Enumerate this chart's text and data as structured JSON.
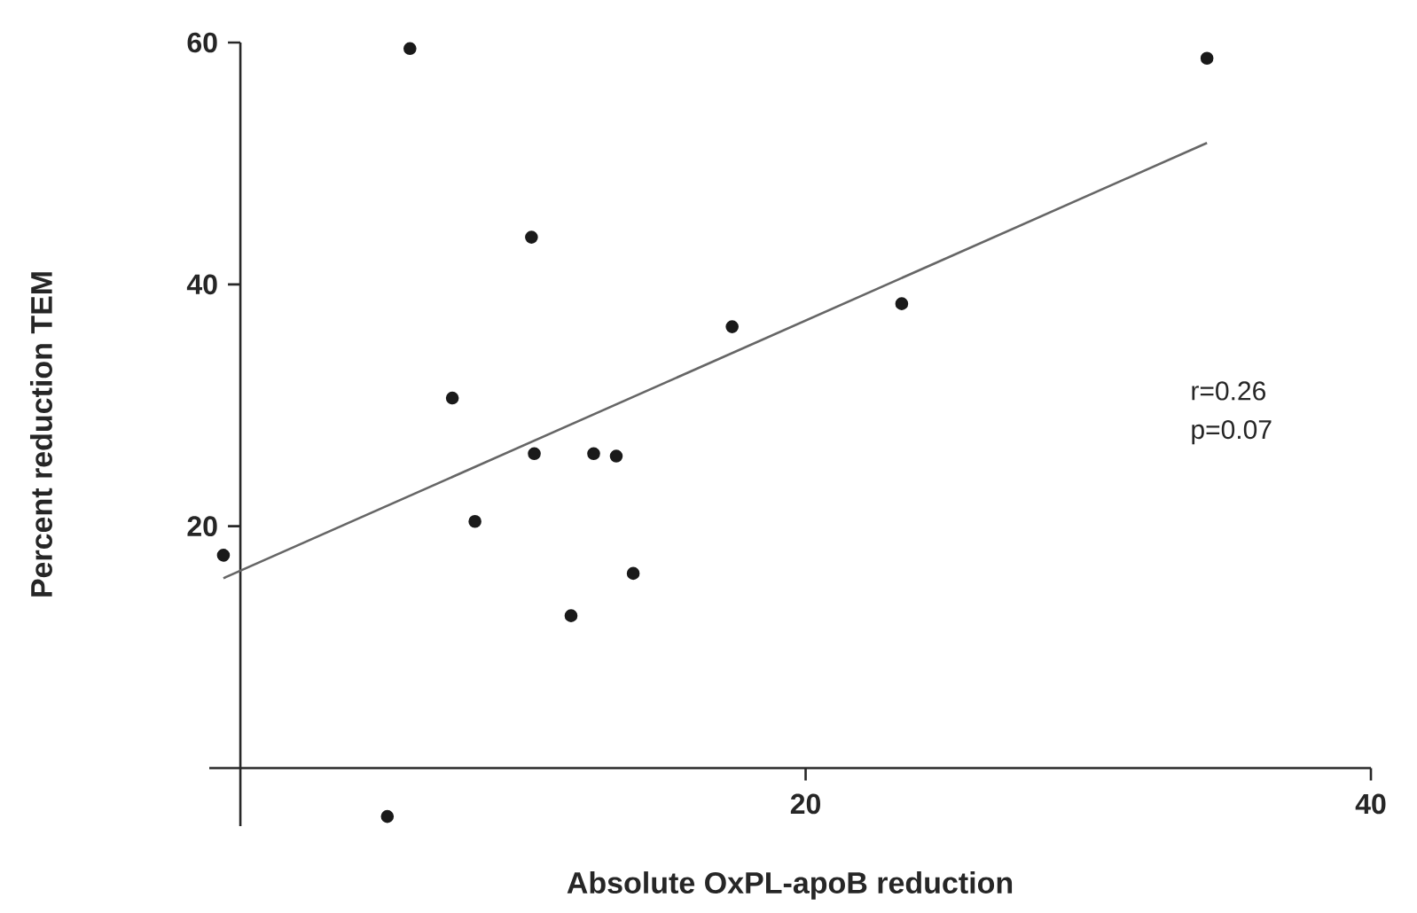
{
  "chart_data": {
    "type": "scatter",
    "xlabel": "Absolute OxPL-apoB reduction",
    "ylabel": "Percent reduction TEM",
    "xlim": [
      -1.1,
      40
    ],
    "ylim": [
      -4.8,
      60
    ],
    "xticks": [
      20,
      40
    ],
    "yticks": [
      20,
      40,
      60
    ],
    "annotations": [
      "r=0.26",
      "p=0.07"
    ],
    "series": [
      {
        "color": "#1a1a1a",
        "marker": "circle",
        "x": [
          -0.6,
          6.0,
          10.3,
          7.5,
          10.4,
          8.3,
          12.5,
          13.3,
          11.7,
          13.9,
          5.2,
          17.4,
          23.4,
          34.2
        ],
        "values": [
          17.6,
          59.5,
          43.9,
          30.6,
          26.0,
          20.4,
          26.0,
          25.8,
          12.6,
          16.1,
          -4.0,
          36.5,
          38.4,
          58.7
        ]
      },
      {
        "type": "line",
        "color": "#666666",
        "marker": "none",
        "line_style": "solid",
        "x": [
          -0.6,
          34.2
        ],
        "values": [
          15.7,
          51.7
        ]
      }
    ]
  }
}
